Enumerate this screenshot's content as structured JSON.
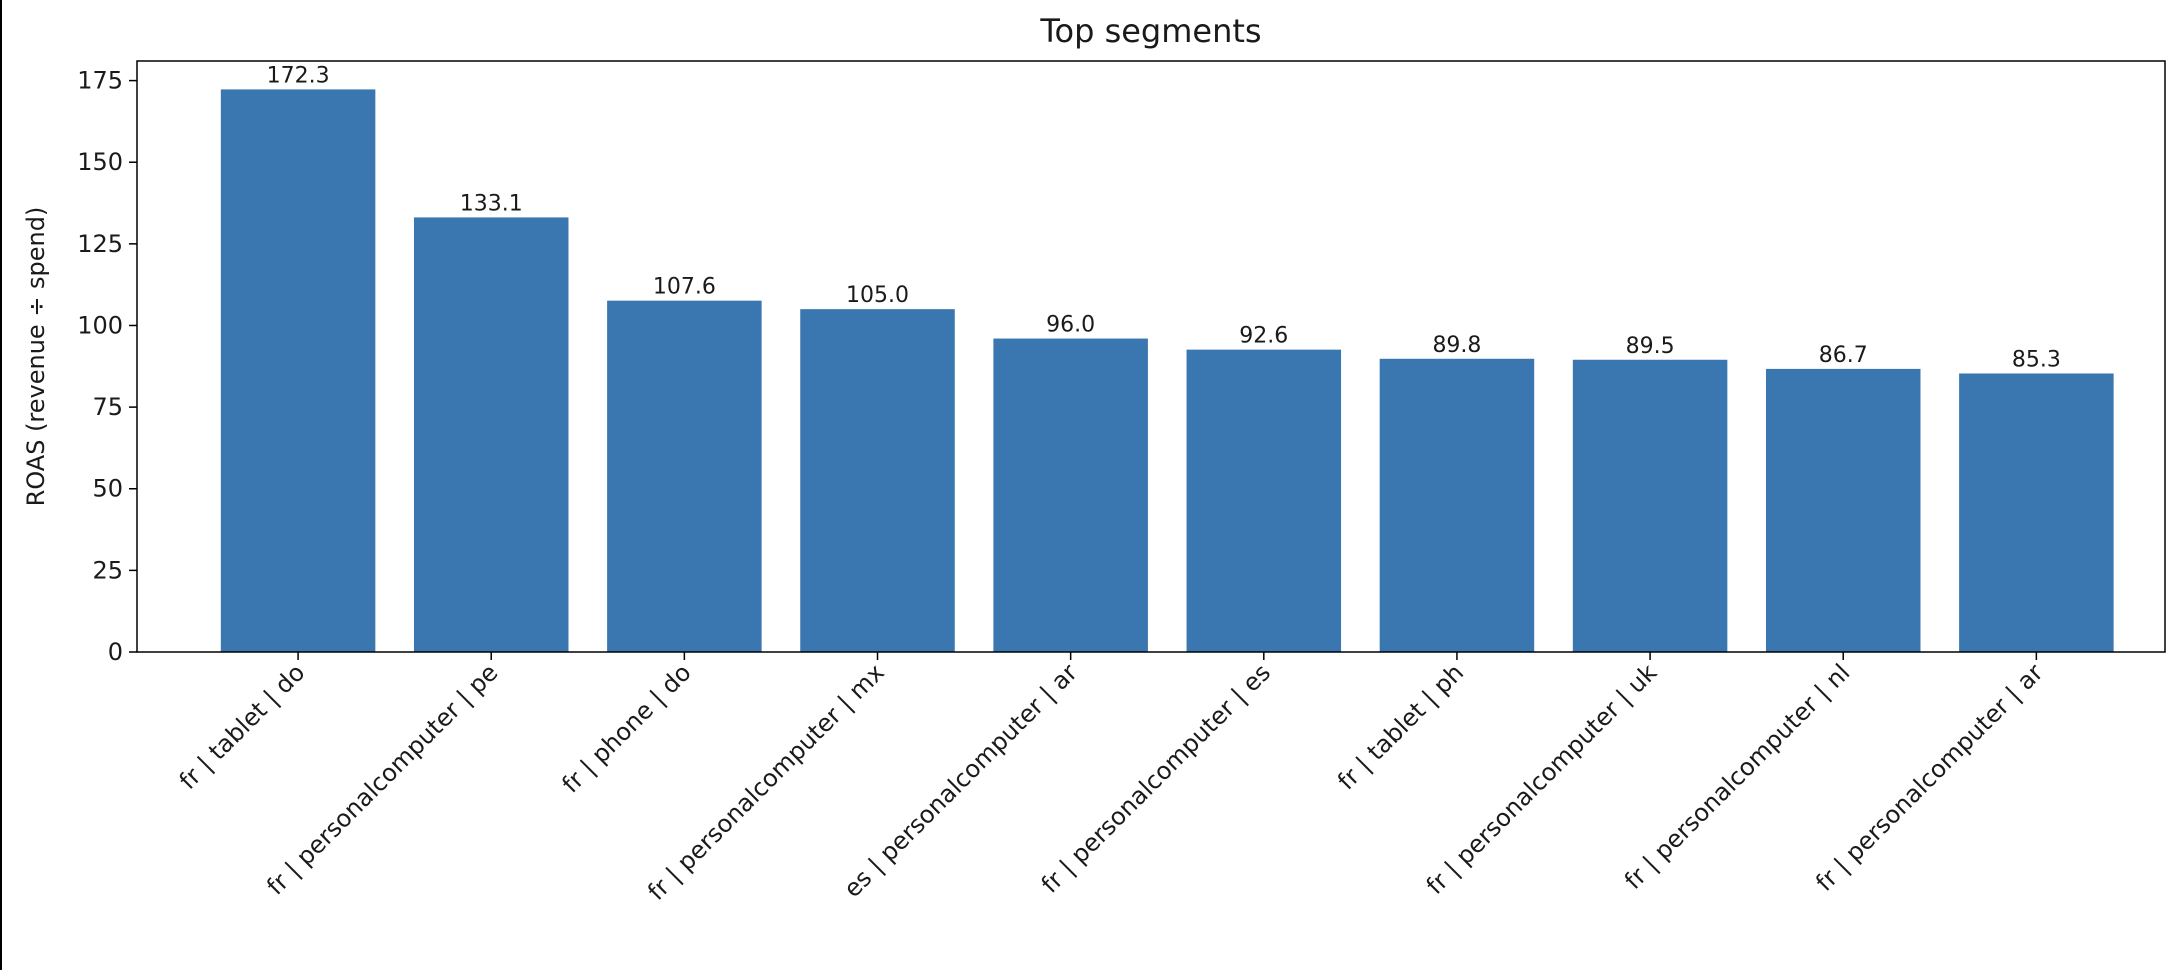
{
  "chart_data": {
    "type": "bar",
    "title": "Top segments",
    "xlabel": "",
    "ylabel": "ROAS (revenue ÷ spend)",
    "categories": [
      "fr | tablet | do",
      "fr | personalcomputer | pe",
      "fr | phone | do",
      "fr | personalcomputer | mx",
      "es | personalcomputer | ar",
      "fr | personalcomputer | es",
      "fr | tablet | ph",
      "fr | personalcomputer | uk",
      "fr | personalcomputer | nl",
      "fr | personalcomputer | ar"
    ],
    "values": [
      172.3,
      133.1,
      107.6,
      105.0,
      96.0,
      92.6,
      89.8,
      89.5,
      86.7,
      85.3
    ],
    "value_labels": [
      "172.3",
      "133.1",
      "107.6",
      "105.0",
      "96.0",
      "92.6",
      "89.8",
      "89.5",
      "86.7",
      "85.3"
    ],
    "ylim": [
      0,
      181
    ],
    "yticks": [
      0,
      25,
      50,
      75,
      100,
      125,
      150,
      175
    ],
    "grid": false,
    "legend": "none",
    "bar_color": "#3a76af"
  }
}
